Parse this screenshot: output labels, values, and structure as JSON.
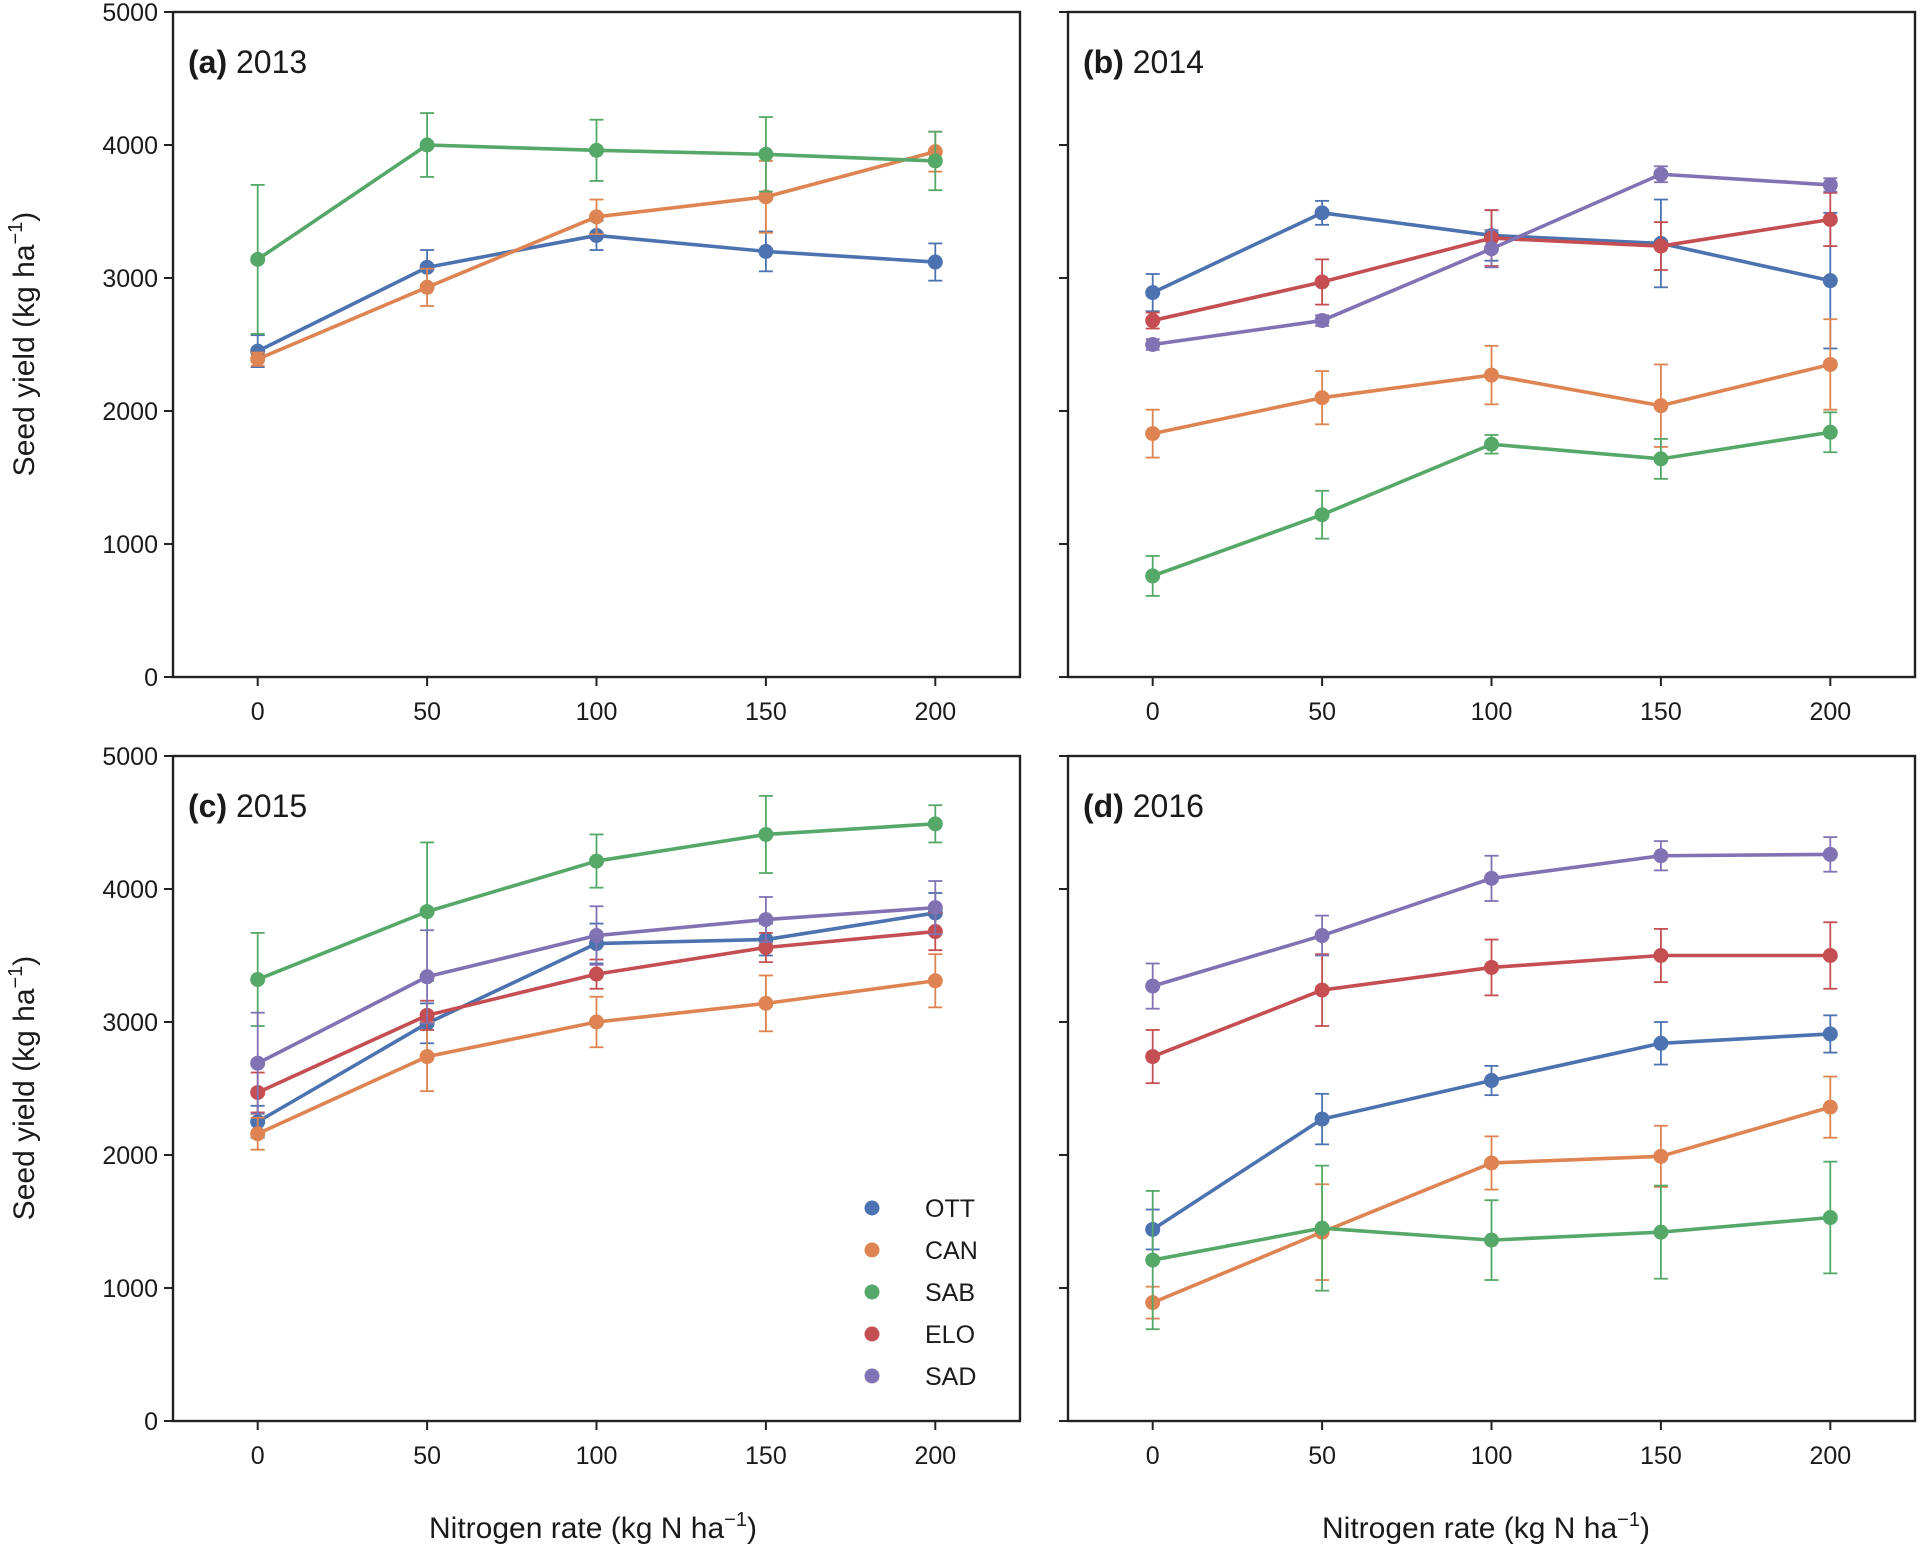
{
  "figure": {
    "ylabel": "Seed yield (kg ha",
    "ylabel_sup": "−1",
    "ylabel_close": ")",
    "xlabel": "Nitrogen rate (kg N ha",
    "xlabel_sup": "−1",
    "xlabel_close": ")"
  },
  "legend": {
    "items": [
      {
        "name": "OTT",
        "color": "#4c72b0"
      },
      {
        "name": "CAN",
        "color": "#dd8452"
      },
      {
        "name": "SAB",
        "color": "#55a868"
      },
      {
        "name": "ELO",
        "color": "#c44e52"
      },
      {
        "name": "SAD",
        "color": "#8172b3"
      }
    ]
  },
  "chart_data": [
    {
      "type": "line",
      "panel": "(a)",
      "title": "2013",
      "x": [
        0,
        50,
        100,
        150,
        200
      ],
      "xticks": [
        "0",
        "50",
        "100",
        "150",
        "200"
      ],
      "xlim": [
        -25,
        225
      ],
      "ylim": [
        0,
        5000
      ],
      "yticks": [
        "0",
        "1000",
        "2000",
        "3000",
        "4000",
        "5000"
      ],
      "series": [
        {
          "name": "OTT",
          "values": [
            2450,
            3080,
            3320,
            3200,
            3120
          ],
          "err": [
            120,
            130,
            110,
            150,
            140
          ]
        },
        {
          "name": "CAN",
          "values": [
            2390,
            2930,
            3460,
            3610,
            3950
          ],
          "err": [
            50,
            140,
            130,
            270,
            150
          ]
        },
        {
          "name": "SAB",
          "values": [
            3140,
            4000,
            3960,
            3930,
            3880
          ],
          "err": [
            560,
            240,
            230,
            280,
            220
          ]
        }
      ]
    },
    {
      "type": "line",
      "panel": "(b)",
      "title": "2014",
      "x": [
        0,
        50,
        100,
        150,
        200
      ],
      "xticks": [
        "0",
        "50",
        "100",
        "150",
        "200"
      ],
      "xlim": [
        -25,
        225
      ],
      "ylim": [
        0,
        5000
      ],
      "yticks": [
        "0",
        "1000",
        "2000",
        "3000",
        "4000",
        "5000"
      ],
      "series": [
        {
          "name": "OTT",
          "values": [
            2890,
            3490,
            3320,
            3260,
            2980
          ],
          "err": [
            140,
            90,
            190,
            330,
            510
          ]
        },
        {
          "name": "CAN",
          "values": [
            1830,
            2100,
            2270,
            2040,
            2350
          ],
          "err": [
            180,
            200,
            220,
            310,
            340
          ]
        },
        {
          "name": "SAB",
          "values": [
            760,
            1220,
            1750,
            1640,
            1840
          ],
          "err": [
            150,
            180,
            70,
            150,
            150
          ]
        },
        {
          "name": "ELO",
          "values": [
            2680,
            2970,
            3300,
            3240,
            3440
          ],
          "err": [
            60,
            170,
            210,
            180,
            200
          ]
        },
        {
          "name": "SAD",
          "values": [
            2500,
            2680,
            3220,
            3780,
            3700
          ],
          "err": [
            40,
            40,
            140,
            60,
            50
          ]
        }
      ]
    },
    {
      "type": "line",
      "panel": "(c)",
      "title": "2015",
      "x": [
        0,
        50,
        100,
        150,
        200
      ],
      "xticks": [
        "0",
        "50",
        "100",
        "150",
        "200"
      ],
      "xlim": [
        -25,
        225
      ],
      "ylim": [
        0,
        5000
      ],
      "yticks": [
        "0",
        "1000",
        "2000",
        "3000",
        "4000",
        "5000"
      ],
      "series": [
        {
          "name": "OTT",
          "values": [
            2250,
            2990,
            3590,
            3620,
            3820
          ],
          "err": [
            120,
            150,
            150,
            120,
            150
          ]
        },
        {
          "name": "CAN",
          "values": [
            2160,
            2740,
            3000,
            3140,
            3310
          ],
          "err": [
            120,
            260,
            190,
            210,
            200
          ]
        },
        {
          "name": "SAB",
          "values": [
            3320,
            3830,
            4210,
            4410,
            4490
          ],
          "err": [
            350,
            520,
            200,
            290,
            140
          ]
        },
        {
          "name": "ELO",
          "values": [
            2470,
            3050,
            3360,
            3560,
            3680
          ],
          "err": [
            150,
            110,
            110,
            110,
            140
          ]
        },
        {
          "name": "SAD",
          "values": [
            2690,
            3340,
            3650,
            3770,
            3860
          ],
          "err": [
            380,
            350,
            220,
            170,
            200
          ]
        }
      ]
    },
    {
      "type": "line",
      "panel": "(d)",
      "title": "2016",
      "x": [
        0,
        50,
        100,
        150,
        200
      ],
      "xticks": [
        "0",
        "50",
        "100",
        "150",
        "200"
      ],
      "xlim": [
        -25,
        225
      ],
      "ylim": [
        0,
        5000
      ],
      "yticks": [
        "0",
        "1000",
        "2000",
        "3000",
        "4000",
        "5000"
      ],
      "series": [
        {
          "name": "OTT",
          "values": [
            1440,
            2270,
            2560,
            2840,
            2910
          ],
          "err": [
            150,
            190,
            110,
            160,
            140
          ]
        },
        {
          "name": "CAN",
          "values": [
            890,
            1420,
            1940,
            1990,
            2360
          ],
          "err": [
            120,
            360,
            200,
            230,
            230
          ]
        },
        {
          "name": "SAB",
          "values": [
            1210,
            1450,
            1360,
            1420,
            1530
          ],
          "err": [
            520,
            470,
            300,
            350,
            420
          ]
        },
        {
          "name": "ELO",
          "values": [
            2740,
            3240,
            3410,
            3500,
            3500
          ],
          "err": [
            200,
            270,
            210,
            200,
            250
          ]
        },
        {
          "name": "SAD",
          "values": [
            3270,
            3650,
            4080,
            4250,
            4260
          ],
          "err": [
            170,
            150,
            170,
            110,
            130
          ]
        }
      ]
    }
  ]
}
